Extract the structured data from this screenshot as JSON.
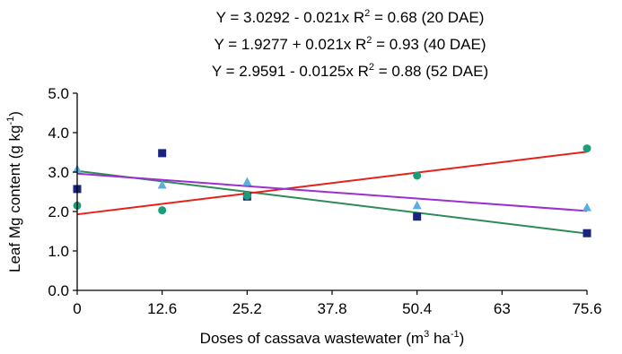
{
  "chart_data": {
    "type": "scatter",
    "equations": [
      {
        "prefix": "Y = 3.0292 - 0.021x  R",
        "sup": "2",
        "suffix": " = 0.68 (20 DAE)"
      },
      {
        "prefix": "Y = 1.9277 + 0.021x  R",
        "sup": "2",
        "suffix": " = 0.93 (40 DAE)"
      },
      {
        "prefix": "Y = 2.9591 - 0.0125x R",
        "sup": "2",
        "suffix": " = 0.88 (52 DAE)"
      }
    ],
    "ylabel": {
      "prefix": "Leaf Mg content (g kg",
      "sup": "-1",
      "suffix": ")"
    },
    "xlabel": {
      "prefix": "Doses of cassava wastewater (m",
      "sup1": "3",
      "mid": " ha",
      "sup2": "-1",
      "suffix": ")"
    },
    "xlim": [
      0,
      75.6
    ],
    "ylim": [
      0,
      5
    ],
    "xticks": [
      0,
      12.6,
      25.2,
      37.8,
      50.4,
      63,
      75.6
    ],
    "xtick_labels": [
      "0",
      "12.6",
      "25.2",
      "37.8",
      "50.4",
      "63",
      "75.6"
    ],
    "yticks": [
      0,
      1,
      2,
      3,
      4,
      5
    ],
    "ytick_labels": [
      "0.0",
      "1.0",
      "2.0",
      "3.0",
      "4.0",
      "5.0"
    ],
    "grid": false,
    "series": [
      {
        "marker": "square",
        "color": "#1a237e",
        "line_color": "#2e8b57",
        "x": [
          0,
          12.6,
          25.2,
          50.4,
          75.6
        ],
        "y": [
          2.57,
          3.48,
          2.38,
          1.87,
          1.45
        ],
        "fit": {
          "intercept": 3.0292,
          "slope": -0.021
        }
      },
      {
        "marker": "circle",
        "color": "#1a9e77",
        "line_color": "#e8201c",
        "x": [
          0,
          12.6,
          25.2,
          50.4,
          75.6
        ],
        "y": [
          2.15,
          2.03,
          2.4,
          2.91,
          3.6
        ],
        "fit": {
          "intercept": 1.9277,
          "slope": 0.021
        }
      },
      {
        "marker": "triangle",
        "color": "#5aaee0",
        "line_color": "#9b30d0",
        "x": [
          0,
          12.6,
          25.2,
          50.4,
          75.6
        ],
        "y": [
          3.07,
          2.67,
          2.75,
          2.15,
          2.1
        ],
        "fit": {
          "intercept": 2.9591,
          "slope": -0.0125
        }
      }
    ]
  }
}
